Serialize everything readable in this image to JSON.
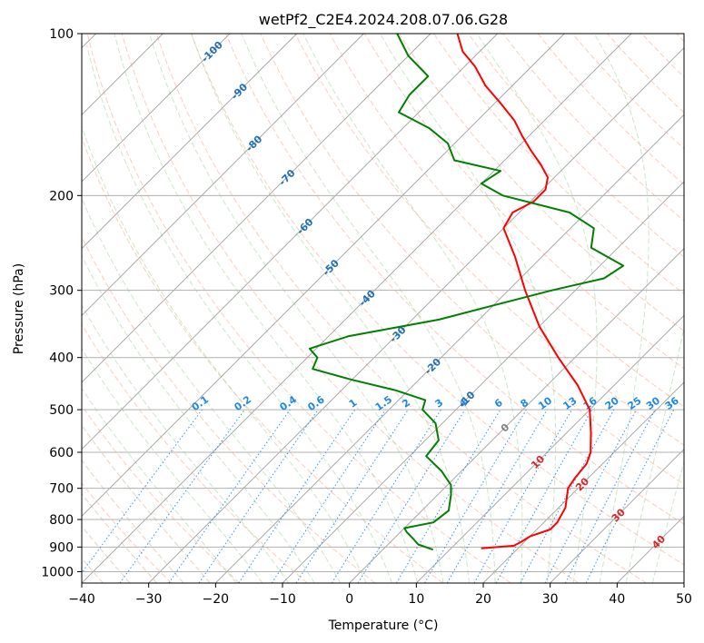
{
  "chart_data": {
    "type": "line",
    "subtype": "skew-t log-p",
    "title": "wetPf2_C2E4.2024.208.07.06.G28",
    "xlabel": "Temperature (°C)",
    "ylabel": "Pressure (hPa)",
    "xlim": [
      -40,
      50
    ],
    "ylim": [
      1050,
      100
    ],
    "x_ticks": [
      -40,
      -30,
      -20,
      -10,
      0,
      10,
      20,
      30,
      40,
      50
    ],
    "x_tick_labels": [
      "−40",
      "−30",
      "−20",
      "−10",
      "0",
      "10",
      "20",
      "30",
      "40",
      "50"
    ],
    "y_ticks": [
      100,
      200,
      300,
      400,
      500,
      600,
      700,
      800,
      900,
      1000
    ],
    "y_tick_labels": [
      "100",
      "200",
      "300",
      "400",
      "500",
      "600",
      "700",
      "800",
      "900",
      "1000"
    ],
    "grid": true,
    "colors": {
      "temperature": "#ff0000",
      "dewpoint": "#008000",
      "isotherm": "#a0a0a0",
      "dry_adiabat": "#f4a582",
      "moist_adiabat": "#a6d5a0",
      "mixing_ratio": "#1e88e5",
      "wet_bulb": "#d9c0a0",
      "iso_label_cold": "#1f6fb5",
      "iso_label_warm": "#d62728",
      "iso_label_zero": "#808080"
    },
    "isotherm_labels": [
      {
        "value": -100,
        "text": "-100",
        "p": 108
      },
      {
        "value": -90,
        "text": "-90",
        "p": 128
      },
      {
        "value": -80,
        "text": "-80",
        "p": 160
      },
      {
        "value": -70,
        "text": "-70",
        "p": 185
      },
      {
        "value": -60,
        "text": "-60",
        "p": 228
      },
      {
        "value": -50,
        "text": "-50",
        "p": 272
      },
      {
        "value": -40,
        "text": "-40",
        "p": 310
      },
      {
        "value": -30,
        "text": "-30",
        "p": 362
      },
      {
        "value": -20,
        "text": "-20",
        "p": 415
      },
      {
        "value": -10,
        "text": "-10",
        "p": 478
      },
      {
        "value": 0,
        "text": "0",
        "p": 540
      },
      {
        "value": 10,
        "text": "10",
        "p": 625
      },
      {
        "value": 20,
        "text": "20",
        "p": 688
      },
      {
        "value": 30,
        "text": "30",
        "p": 785
      },
      {
        "value": 40,
        "text": "40",
        "p": 880
      }
    ],
    "mixing_ratio_lines": [
      0.1,
      0.2,
      0.4,
      0.6,
      1,
      1.5,
      2,
      3,
      4,
      6,
      8,
      10,
      13,
      16,
      20,
      25,
      30,
      36
    ],
    "mixing_ratio_labels": [
      "0.1",
      "0.2",
      "0.4",
      "0.6",
      "1",
      "1.5",
      "2",
      "3",
      "4",
      "6",
      "8",
      "10",
      "13",
      "16",
      "20",
      "25",
      "30",
      "36"
    ],
    "series": [
      {
        "name": "Temperature",
        "color": "#ff0000",
        "points": [
          [
            905,
            14.5
          ],
          [
            895,
            19
          ],
          [
            880,
            19.5
          ],
          [
            860,
            20
          ],
          [
            835,
            22
          ],
          [
            810,
            22
          ],
          [
            760,
            21
          ],
          [
            700,
            18.5
          ],
          [
            670,
            18
          ],
          [
            630,
            17.6
          ],
          [
            600,
            16.5
          ],
          [
            550,
            13.5
          ],
          [
            500,
            10
          ],
          [
            450,
            4.5
          ],
          [
            400,
            -2.5
          ],
          [
            350,
            -10
          ],
          [
            300,
            -17.5
          ],
          [
            260,
            -24
          ],
          [
            230,
            -30
          ],
          [
            215,
            -31
          ],
          [
            205,
            -29.5
          ],
          [
            195,
            -29.5
          ],
          [
            185,
            -31
          ],
          [
            175,
            -34
          ],
          [
            165,
            -37.5
          ],
          [
            155,
            -41
          ],
          [
            145,
            -44.5
          ],
          [
            135,
            -49
          ],
          [
            125,
            -54
          ],
          [
            115,
            -58.5
          ],
          [
            108,
            -62.5
          ],
          [
            100,
            -66
          ]
        ]
      },
      {
        "name": "Dew Point",
        "color": "#008000",
        "points": [
          [
            910,
            7.5
          ],
          [
            890,
            4.5
          ],
          [
            870,
            3
          ],
          [
            845,
            1
          ],
          [
            830,
            0
          ],
          [
            810,
            3.5
          ],
          [
            770,
            4
          ],
          [
            720,
            2
          ],
          [
            690,
            0.5
          ],
          [
            650,
            -3
          ],
          [
            610,
            -7.5
          ],
          [
            570,
            -8
          ],
          [
            530,
            -11
          ],
          [
            500,
            -15
          ],
          [
            480,
            -16
          ],
          [
            460,
            -22
          ],
          [
            440,
            -30
          ],
          [
            420,
            -37.5
          ],
          [
            400,
            -38.5
          ],
          [
            385,
            -41
          ],
          [
            365,
            -37
          ],
          [
            340,
            -26
          ],
          [
            320,
            -20
          ],
          [
            300,
            -13.5
          ],
          [
            285,
            -7.5
          ],
          [
            270,
            -6.5
          ],
          [
            250,
            -14
          ],
          [
            230,
            -16.5
          ],
          [
            215,
            -22.5
          ],
          [
            200,
            -35
          ],
          [
            190,
            -40
          ],
          [
            180,
            -39
          ],
          [
            172,
            -47.5
          ],
          [
            160,
            -51
          ],
          [
            150,
            -56
          ],
          [
            140,
            -63
          ],
          [
            130,
            -64
          ],
          [
            120,
            -64
          ],
          [
            110,
            -70
          ],
          [
            100,
            -75
          ]
        ]
      }
    ]
  }
}
